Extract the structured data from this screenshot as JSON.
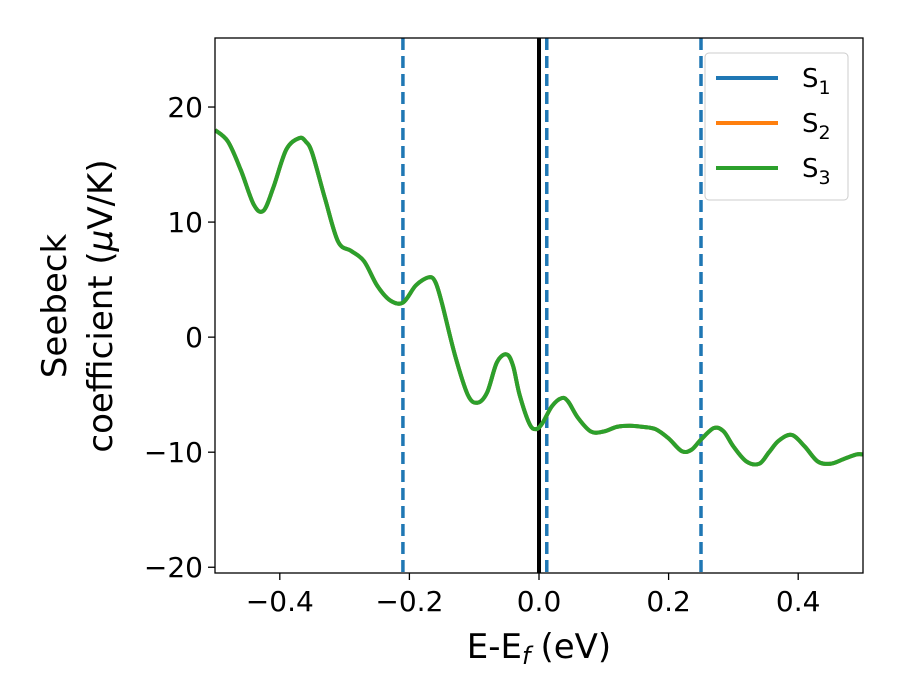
{
  "chart_data": {
    "type": "line",
    "xlabel": "E-E",
    "xlabel_sub": "f",
    "xlabel_unit": "(eV)",
    "ylabel_line1": "Seebeck",
    "ylabel_line2": "coefficient  (",
    "ylabel_mu": "μ",
    "ylabel_unit_tail": "V/K)",
    "xlim": [
      -0.5,
      0.5
    ],
    "ylim": [
      -20.5,
      26
    ],
    "x_ticks": [
      -0.4,
      -0.2,
      0.0,
      0.2,
      0.4
    ],
    "x_tick_labels": [
      "−0.4",
      "−0.2",
      "0.0",
      "0.2",
      "0.4"
    ],
    "y_ticks": [
      -20,
      -10,
      0,
      10,
      20
    ],
    "y_tick_labels": [
      "−20",
      "−10",
      "0",
      "10",
      "20"
    ],
    "grid": false,
    "legend_position": "top-right",
    "vertical_lines": [
      {
        "x": -0.21,
        "style": "dashed",
        "color": "#1f77b4"
      },
      {
        "x": 0.0,
        "style": "solid",
        "color": "#000000"
      },
      {
        "x": 0.012,
        "style": "dashed",
        "color": "#1f77b4"
      },
      {
        "x": 0.25,
        "style": "dashed",
        "color": "#1f77b4"
      }
    ],
    "x": [
      -0.5,
      -0.48,
      -0.46,
      -0.44,
      -0.425,
      -0.41,
      -0.39,
      -0.37,
      -0.36,
      -0.35,
      -0.33,
      -0.31,
      -0.29,
      -0.27,
      -0.25,
      -0.23,
      -0.21,
      -0.19,
      -0.17,
      -0.16,
      -0.15,
      -0.13,
      -0.11,
      -0.095,
      -0.08,
      -0.065,
      -0.05,
      -0.04,
      -0.03,
      -0.015,
      -0.005,
      0.005,
      0.02,
      0.035,
      0.045,
      0.06,
      0.08,
      0.1,
      0.12,
      0.14,
      0.16,
      0.18,
      0.2,
      0.22,
      0.235,
      0.25,
      0.27,
      0.285,
      0.3,
      0.32,
      0.34,
      0.355,
      0.37,
      0.39,
      0.41,
      0.43,
      0.45,
      0.47,
      0.49,
      0.5
    ],
    "series": [
      {
        "name": "S",
        "sub": "1",
        "color": "#1f77b4",
        "values": [
          18.0,
          17.0,
          14.5,
          11.5,
          11.0,
          13.0,
          16.3,
          17.3,
          17.0,
          16.0,
          12.0,
          8.3,
          7.5,
          6.6,
          4.5,
          3.2,
          3.0,
          4.5,
          5.2,
          4.8,
          3.0,
          -1.5,
          -5.0,
          -5.7,
          -4.8,
          -2.2,
          -1.5,
          -2.5,
          -5.0,
          -7.5,
          -8.0,
          -7.5,
          -6.0,
          -5.3,
          -5.6,
          -7.0,
          -8.2,
          -8.2,
          -7.8,
          -7.7,
          -7.8,
          -8.0,
          -8.8,
          -9.9,
          -9.8,
          -8.9,
          -7.9,
          -8.2,
          -9.5,
          -10.8,
          -11.0,
          -10.0,
          -9.0,
          -8.5,
          -9.5,
          -10.8,
          -11.0,
          -10.6,
          -10.2,
          -10.2
        ]
      },
      {
        "name": "S",
        "sub": "2",
        "color": "#ff7f0e",
        "values": [
          18.0,
          17.0,
          14.5,
          11.5,
          11.0,
          13.0,
          16.3,
          17.3,
          17.0,
          16.0,
          12.0,
          8.3,
          7.5,
          6.6,
          4.5,
          3.2,
          3.0,
          4.5,
          5.2,
          4.8,
          3.0,
          -1.5,
          -5.0,
          -5.7,
          -4.8,
          -2.2,
          -1.5,
          -2.5,
          -5.0,
          -7.5,
          -8.0,
          -7.5,
          -6.0,
          -5.3,
          -5.6,
          -7.0,
          -8.2,
          -8.2,
          -7.8,
          -7.7,
          -7.8,
          -8.0,
          -8.8,
          -9.9,
          -9.8,
          -8.9,
          -7.9,
          -8.2,
          -9.5,
          -10.8,
          -11.0,
          -10.0,
          -9.0,
          -8.5,
          -9.5,
          -10.8,
          -11.0,
          -10.6,
          -10.2,
          -10.2
        ]
      },
      {
        "name": "S",
        "sub": "3",
        "color": "#2ca02c",
        "values": [
          18.0,
          17.0,
          14.5,
          11.5,
          11.0,
          13.0,
          16.3,
          17.3,
          17.0,
          16.0,
          12.0,
          8.3,
          7.5,
          6.6,
          4.5,
          3.2,
          3.0,
          4.5,
          5.2,
          4.8,
          3.0,
          -1.5,
          -5.0,
          -5.7,
          -4.8,
          -2.2,
          -1.5,
          -2.5,
          -5.0,
          -7.5,
          -8.0,
          -7.5,
          -6.0,
          -5.3,
          -5.6,
          -7.0,
          -8.2,
          -8.2,
          -7.8,
          -7.7,
          -7.8,
          -8.0,
          -8.8,
          -9.9,
          -9.8,
          -8.9,
          -7.9,
          -8.2,
          -9.5,
          -10.8,
          -11.0,
          -10.0,
          -9.0,
          -8.5,
          -9.5,
          -10.8,
          -11.0,
          -10.6,
          -10.2,
          -10.2
        ]
      }
    ]
  }
}
